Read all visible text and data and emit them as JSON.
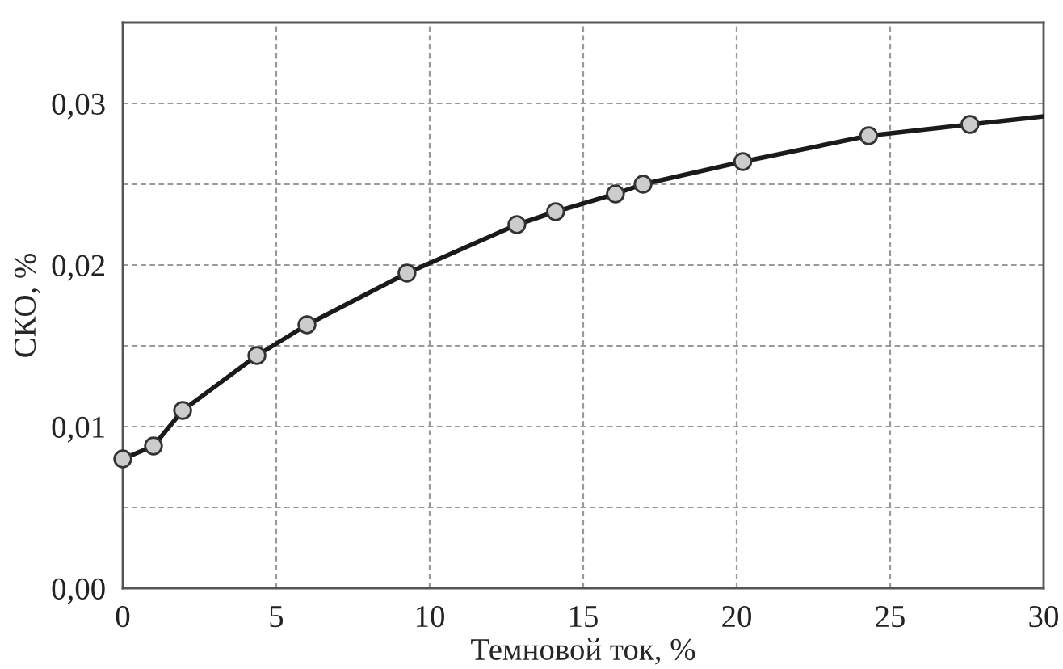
{
  "chart_data": {
    "type": "line",
    "xlabel": "Темновой ток, %",
    "ylabel": "СКО, %",
    "series": [
      {
        "color": "#1a1a1a",
        "marker": "none",
        "x": [
          0,
          1.0,
          1.95,
          4.37,
          6.0,
          9.26,
          12.84,
          14.1,
          16.05,
          16.95,
          20.2,
          24.3,
          27.6,
          30
        ],
        "values": [
          0.008,
          0.0088,
          0.011,
          0.0144,
          0.0163,
          0.0195,
          0.0225,
          0.0233,
          0.0244,
          0.025,
          0.0264,
          0.028,
          0.0287,
          0.0292
        ]
      },
      {
        "type": "scatter",
        "color": "#cccccc",
        "marker": "circle",
        "x": [
          0,
          1.0,
          1.95,
          4.37,
          6.0,
          9.26,
          12.84,
          14.1,
          16.05,
          16.95,
          20.2,
          24.3,
          27.6
        ],
        "values": [
          0.008,
          0.0088,
          0.011,
          0.0144,
          0.0163,
          0.0195,
          0.0225,
          0.0233,
          0.0244,
          0.025,
          0.0264,
          0.028,
          0.0287
        ]
      }
    ],
    "xlim": [
      0,
      30
    ],
    "xticks": [
      0,
      5,
      10,
      15,
      20,
      25,
      30
    ],
    "ylim": [
      0,
      0.035
    ],
    "yticks": [
      {
        "value": 0,
        "label": "0,00"
      },
      {
        "value": 0.005,
        "label": null
      },
      {
        "value": 0.01,
        "label": "0,01"
      },
      {
        "value": 0.015,
        "label": null
      },
      {
        "value": 0.02,
        "label": "0,02"
      },
      {
        "value": 0.025,
        "label": null
      },
      {
        "value": 0.03,
        "label": "0,03"
      }
    ],
    "grid": true,
    "legend": false,
    "line_style": "solid"
  }
}
